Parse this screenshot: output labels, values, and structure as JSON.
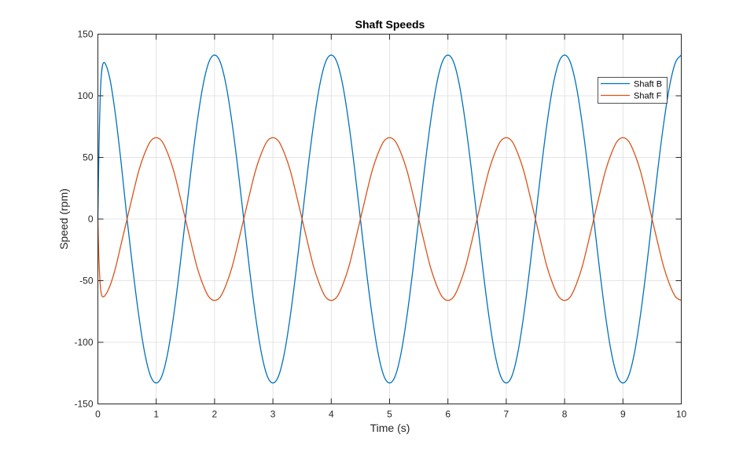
{
  "chart_data": {
    "type": "line",
    "title": "Shaft Speeds",
    "xlabel": "Time (s)",
    "ylabel": "Speed (rpm)",
    "xlim": [
      0,
      10
    ],
    "ylim": [
      -150,
      150
    ],
    "xticks": [
      "0",
      "1",
      "2",
      "3",
      "4",
      "5",
      "6",
      "7",
      "8",
      "9",
      "10"
    ],
    "yticks": [
      "150",
      "100",
      "50",
      "0",
      "-50",
      "-100",
      "-150"
    ],
    "grid": true,
    "legend_position": "top-right",
    "series": [
      {
        "name": "Shaft B",
        "color": "#0072BD",
        "x": [
          0,
          0.02,
          0.05,
          0.1,
          0.2,
          0.3,
          0.4,
          0.5,
          0.6,
          0.7,
          0.8,
          0.9,
          1.0,
          1.1,
          1.2,
          1.3,
          1.4,
          1.5,
          1.6,
          1.7,
          1.8,
          1.9,
          2.0,
          2.1,
          2.2,
          2.3,
          2.4,
          2.5,
          2.6,
          2.7,
          2.8,
          2.9,
          3.0,
          3.1,
          3.2,
          3.3,
          3.4,
          3.5,
          3.6,
          3.7,
          3.8,
          3.9,
          4.0,
          4.1,
          4.2,
          4.3,
          4.4,
          4.5,
          4.6,
          4.7,
          4.8,
          4.9,
          5.0,
          5.1,
          5.2,
          5.3,
          5.4,
          5.5,
          5.6,
          5.7,
          5.8,
          5.9,
          6.0,
          6.1,
          6.2,
          6.3,
          6.4,
          6.5,
          6.6,
          6.7,
          6.8,
          6.9,
          7.0,
          7.1,
          7.2,
          7.3,
          7.4,
          7.5,
          7.6,
          7.7,
          7.8,
          7.9,
          8.0,
          8.1,
          8.2,
          8.3,
          8.4,
          8.5,
          8.6,
          8.7,
          8.8,
          8.9,
          9.0,
          9.1,
          9.2,
          9.3,
          9.4,
          9.5,
          9.6,
          9.7,
          9.8,
          9.9,
          10.0
        ],
        "y": [
          0,
          60,
          110,
          127,
          115,
          85,
          45,
          0,
          -41,
          -78,
          -108,
          -127,
          -133,
          -127,
          -108,
          -78,
          -41,
          0,
          41,
          78,
          108,
          127,
          133,
          127,
          108,
          78,
          41,
          0,
          -41,
          -78,
          -108,
          -127,
          -133,
          -127,
          -108,
          -78,
          -41,
          0,
          41,
          78,
          108,
          127,
          133,
          127,
          108,
          78,
          41,
          0,
          -41,
          -78,
          -108,
          -127,
          -133,
          -127,
          -108,
          -78,
          -41,
          0,
          41,
          78,
          108,
          127,
          133,
          127,
          108,
          78,
          41,
          0,
          -41,
          -78,
          -108,
          -127,
          -133,
          -127,
          -108,
          -78,
          -41,
          0,
          41,
          78,
          108,
          127,
          133,
          127,
          108,
          78,
          41,
          0,
          -41,
          -78,
          -108,
          -127,
          -133,
          -127,
          -108,
          -78,
          -41,
          0,
          41,
          78,
          108,
          127,
          133
        ]
      },
      {
        "name": "Shaft F",
        "color": "#D95319",
        "x": [
          0,
          0.02,
          0.05,
          0.1,
          0.2,
          0.3,
          0.4,
          0.5,
          0.6,
          0.7,
          0.8,
          0.9,
          1.0,
          1.1,
          1.2,
          1.3,
          1.4,
          1.5,
          1.6,
          1.7,
          1.8,
          1.9,
          2.0,
          2.1,
          2.2,
          2.3,
          2.4,
          2.5,
          2.6,
          2.7,
          2.8,
          2.9,
          3.0,
          3.1,
          3.2,
          3.3,
          3.4,
          3.5,
          3.6,
          3.7,
          3.8,
          3.9,
          4.0,
          4.1,
          4.2,
          4.3,
          4.4,
          4.5,
          4.6,
          4.7,
          4.8,
          4.9,
          5.0,
          5.1,
          5.2,
          5.3,
          5.4,
          5.5,
          5.6,
          5.7,
          5.8,
          5.9,
          6.0,
          6.1,
          6.2,
          6.3,
          6.4,
          6.5,
          6.6,
          6.7,
          6.8,
          6.9,
          7.0,
          7.1,
          7.2,
          7.3,
          7.4,
          7.5,
          7.6,
          7.7,
          7.8,
          7.9,
          8.0,
          8.1,
          8.2,
          8.3,
          8.4,
          8.5,
          8.6,
          8.7,
          8.8,
          8.9,
          9.0,
          9.1,
          9.2,
          9.3,
          9.4,
          9.5,
          9.6,
          9.7,
          9.8,
          9.9,
          10.0
        ],
        "y": [
          0,
          -35,
          -58,
          -63,
          -55,
          -40,
          -20,
          0,
          20,
          39,
          53,
          63,
          66,
          63,
          53,
          39,
          20,
          0,
          -20,
          -39,
          -53,
          -63,
          -66,
          -63,
          -53,
          -39,
          -20,
          0,
          20,
          39,
          53,
          63,
          66,
          63,
          53,
          39,
          20,
          0,
          -20,
          -39,
          -53,
          -63,
          -66,
          -63,
          -53,
          -39,
          -20,
          0,
          20,
          39,
          53,
          63,
          66,
          63,
          53,
          39,
          20,
          0,
          -20,
          -39,
          -53,
          -63,
          -66,
          -63,
          -53,
          -39,
          -20,
          0,
          20,
          39,
          53,
          63,
          66,
          63,
          53,
          39,
          20,
          0,
          -20,
          -39,
          -53,
          -63,
          -66,
          -63,
          -53,
          -39,
          -20,
          0,
          20,
          39,
          53,
          63,
          66,
          63,
          53,
          39,
          20,
          0,
          -20,
          -39,
          -53,
          -63,
          -66
        ]
      }
    ]
  }
}
